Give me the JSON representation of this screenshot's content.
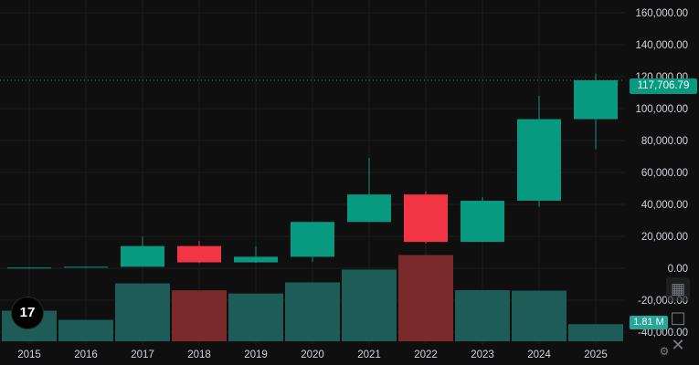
{
  "chart_data": {
    "type": "candlestick",
    "years": [
      "2015",
      "2016",
      "2017",
      "2018",
      "2019",
      "2020",
      "2021",
      "2022",
      "2023",
      "2024",
      "2025"
    ],
    "candles": [
      {
        "year": "2015",
        "open": 300,
        "high": 500,
        "low": 150,
        "close": 430
      },
      {
        "year": "2016",
        "open": 430,
        "high": 1000,
        "low": 350,
        "close": 960
      },
      {
        "year": "2017",
        "open": 960,
        "high": 19800,
        "low": 780,
        "close": 13900
      },
      {
        "year": "2018",
        "open": 13900,
        "high": 17200,
        "low": 3200,
        "close": 3700
      },
      {
        "year": "2019",
        "open": 3700,
        "high": 13800,
        "low": 3400,
        "close": 7200
      },
      {
        "year": "2020",
        "open": 7200,
        "high": 29000,
        "low": 3900,
        "close": 29000
      },
      {
        "year": "2021",
        "open": 29000,
        "high": 69000,
        "low": 28800,
        "close": 46200
      },
      {
        "year": "2022",
        "open": 46200,
        "high": 48200,
        "low": 15500,
        "close": 16500
      },
      {
        "year": "2023",
        "open": 16500,
        "high": 44700,
        "low": 16500,
        "close": 42300
      },
      {
        "year": "2024",
        "open": 42300,
        "high": 108000,
        "low": 38500,
        "close": 93400
      },
      {
        "year": "2025",
        "open": 93400,
        "high": 122000,
        "low": 74500,
        "close": 117706.79
      }
    ],
    "volume_bars": [
      {
        "year": "2015",
        "level": -26600,
        "color": "teal"
      },
      {
        "year": "2016",
        "level": -32300,
        "color": "teal"
      },
      {
        "year": "2017",
        "level": -9500,
        "color": "teal"
      },
      {
        "year": "2018",
        "level": -13800,
        "color": "red"
      },
      {
        "year": "2019",
        "level": -15800,
        "color": "teal"
      },
      {
        "year": "2020",
        "level": -8800,
        "color": "teal"
      },
      {
        "year": "2021",
        "level": -800,
        "color": "teal"
      },
      {
        "year": "2022",
        "level": 8300,
        "color": "red"
      },
      {
        "year": "2023",
        "level": -13700,
        "color": "teal"
      },
      {
        "year": "2024",
        "level": -14000,
        "color": "teal"
      },
      {
        "year": "2025",
        "level": -35000,
        "color": "teal"
      }
    ],
    "y_ticks": [
      "160,000.00",
      "140,000.00",
      "120,000.00",
      "100,000.00",
      "80,000.00",
      "60,000.00",
      "40,000.00",
      "20,000.00",
      "0.00",
      "-20,000.00",
      "-40,000.00"
    ],
    "y_tick_values": [
      160000,
      140000,
      120000,
      100000,
      80000,
      60000,
      40000,
      20000,
      0,
      -20000,
      -40000
    ],
    "ylim": [
      -48000,
      168000
    ],
    "last_price": "117,706.79",
    "last_price_value": 117706.79,
    "volume_label": "1.81 M",
    "grid": true,
    "colors": {
      "up": "#089981",
      "down": "#f23645",
      "volume_up": "#1d5c57",
      "volume_down": "#7a2a2a",
      "background": "#0f0f0f",
      "gridline": "#1c1c1c",
      "axis_text": "#d1d4dc"
    }
  },
  "ui": {
    "logo_text": "17",
    "grid_icon": "grid-icon",
    "square_icon": "square-icon",
    "close_icon": "close-icon",
    "settings_icon": "gear-icon",
    "grid_glyph": "▦",
    "square_glyph": "□",
    "close_glyph": "✕",
    "gear_glyph": "⚙"
  }
}
